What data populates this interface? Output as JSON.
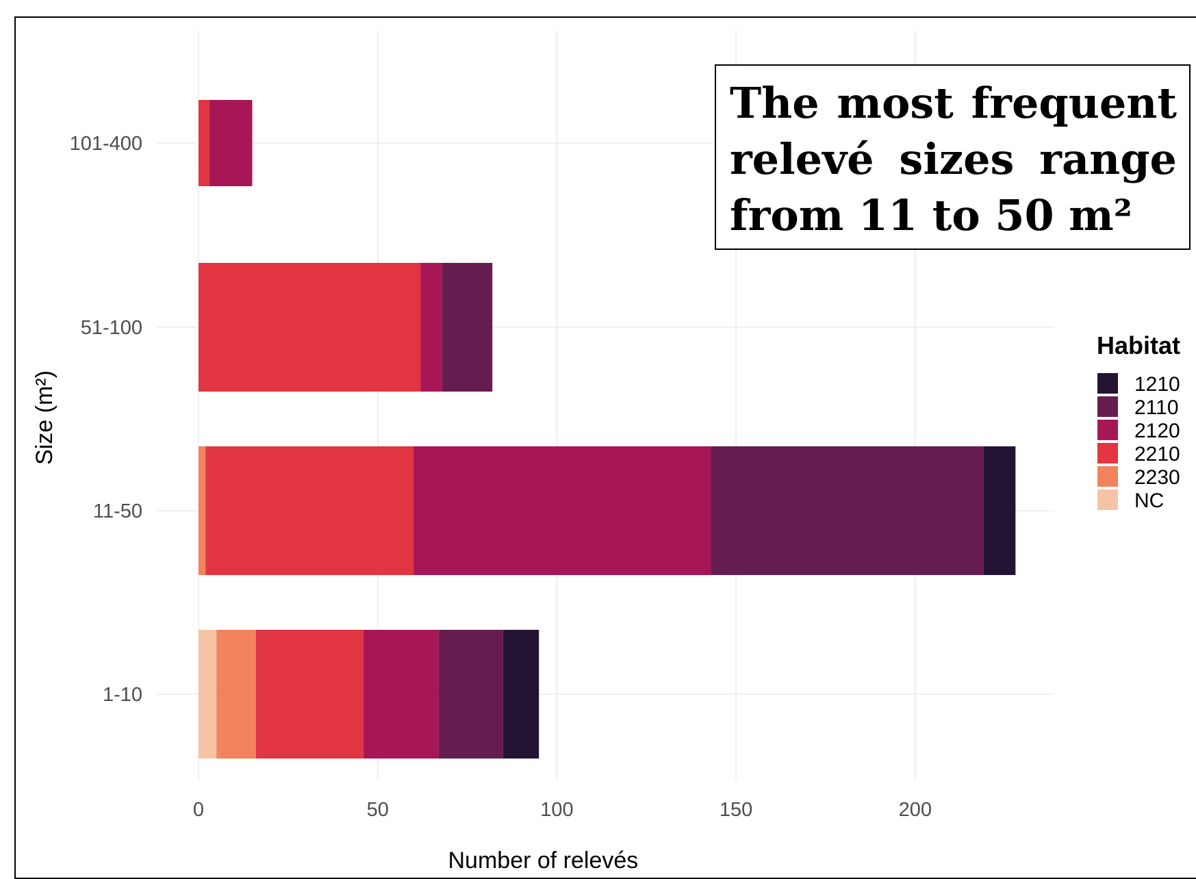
{
  "chart_data": {
    "type": "bar",
    "orientation": "horizontal",
    "stacked": true,
    "title": "",
    "xlabel": "Number of relevés",
    "ylabel": "Size (m²)",
    "xlim": [
      0,
      240
    ],
    "x_ticks": [
      0,
      50,
      100,
      150,
      200
    ],
    "categories": [
      "1-10",
      "11-50",
      "51-100",
      "101-400"
    ],
    "series": [
      {
        "name": "NC",
        "color": "#f6c4a5",
        "values": [
          5,
          0,
          0,
          0
        ]
      },
      {
        "name": "2230",
        "color": "#f1835d",
        "values": [
          11,
          2,
          0,
          0
        ]
      },
      {
        "name": "2210",
        "color": "#e13542",
        "values": [
          30,
          58,
          62,
          3
        ]
      },
      {
        "name": "2120",
        "color": "#a71756",
        "values": [
          21,
          83,
          6,
          12
        ]
      },
      {
        "name": "2110",
        "color": "#651d50",
        "values": [
          18,
          76,
          14,
          0
        ]
      },
      {
        "name": "1210",
        "color": "#241433",
        "values": [
          10,
          9,
          0,
          0
        ]
      }
    ],
    "legend": {
      "title": "Habitat",
      "position": "right",
      "entries": [
        "1210",
        "2110",
        "2120",
        "2210",
        "2230",
        "NC"
      ]
    },
    "grid": true
  },
  "annotation": {
    "text": "The most frequent relevé sizes range from 11 to 50 m²"
  }
}
